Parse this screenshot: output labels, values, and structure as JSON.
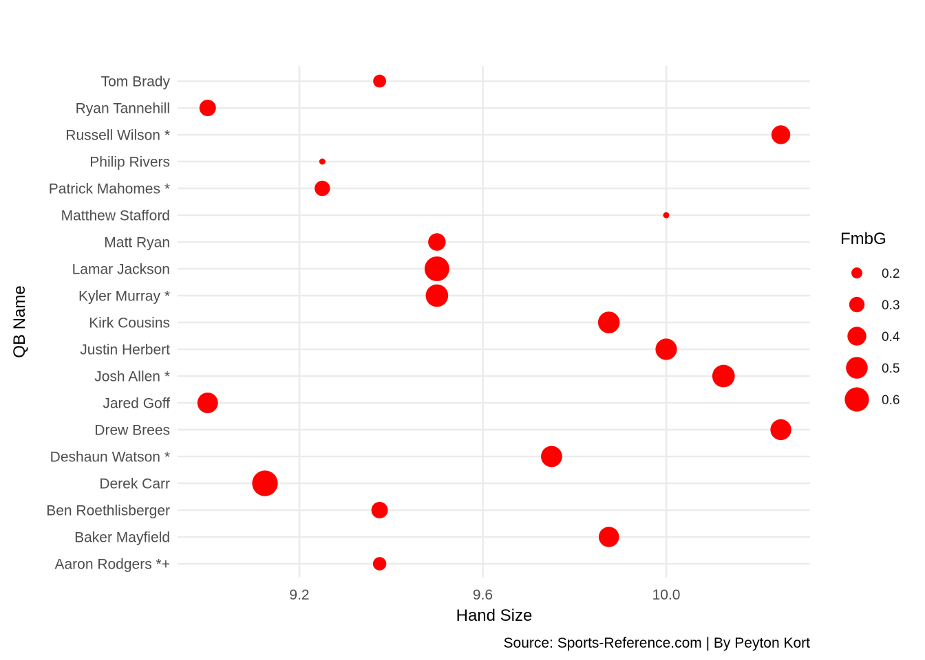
{
  "chart_data": {
    "type": "scatter",
    "title": "",
    "xlabel": "Hand Size",
    "ylabel": "QB Name",
    "caption": "Source: Sports-Reference.com | By Peyton Kort",
    "xlim": [
      8.875,
      10.25
    ],
    "x_ticks": [
      9.2,
      9.6,
      10.0
    ],
    "x_tick_labels": [
      "9.2",
      "9.6",
      "10.0"
    ],
    "grid": true,
    "colors": {
      "point": "#ff0000",
      "grid": "#ebebeb"
    },
    "size_legend": {
      "title": "FmbG",
      "position": "right",
      "breaks": [
        0.2,
        0.3,
        0.4,
        0.5,
        0.6
      ],
      "labels": [
        "0.2",
        "0.3",
        "0.4",
        "0.5",
        "0.6"
      ]
    },
    "size_range": [
      0.13,
      0.68
    ],
    "categories": [
      "Aaron Rodgers *+",
      "Baker Mayfield",
      "Ben Roethlisberger",
      "Derek Carr",
      "Deshaun Watson *",
      "Drew Brees",
      "Jared Goff",
      "Josh Allen *",
      "Justin Herbert",
      "Kirk Cousins",
      "Kyler Murray *",
      "Lamar Jackson",
      "Matt Ryan",
      "Matthew Stafford",
      "Patrick Mahomes *",
      "Philip Rivers",
      "Russell Wilson *",
      "Ryan Tannehill",
      "Tom Brady"
    ],
    "points": [
      {
        "name": "Aaron Rodgers *+",
        "x": 9.375,
        "fmbg": 0.25
      },
      {
        "name": "Baker Mayfield",
        "x": 9.875,
        "fmbg": 0.45
      },
      {
        "name": "Ben Roethlisberger",
        "x": 9.375,
        "fmbg": 0.33
      },
      {
        "name": "Derek Carr",
        "x": 9.125,
        "fmbg": 0.66
      },
      {
        "name": "Deshaun Watson *",
        "x": 9.75,
        "fmbg": 0.48
      },
      {
        "name": "Drew Brees",
        "x": 10.25,
        "fmbg": 0.47
      },
      {
        "name": "Jared Goff",
        "x": 9.0,
        "fmbg": 0.46
      },
      {
        "name": "Josh Allen *",
        "x": 10.125,
        "fmbg": 0.53
      },
      {
        "name": "Justin Herbert",
        "x": 10.0,
        "fmbg": 0.49
      },
      {
        "name": "Kirk Cousins",
        "x": 9.875,
        "fmbg": 0.5
      },
      {
        "name": "Kyler Murray *",
        "x": 9.5,
        "fmbg": 0.53
      },
      {
        "name": "Lamar Jackson",
        "x": 9.5,
        "fmbg": 0.62
      },
      {
        "name": "Matt Ryan",
        "x": 9.5,
        "fmbg": 0.36
      },
      {
        "name": "Matthew Stafford",
        "x": 10.0,
        "fmbg": 0.13
      },
      {
        "name": "Patrick Mahomes *",
        "x": 9.25,
        "fmbg": 0.3
      },
      {
        "name": "Philip Rivers",
        "x": 9.25,
        "fmbg": 0.13
      },
      {
        "name": "Russell Wilson *",
        "x": 10.25,
        "fmbg": 0.4
      },
      {
        "name": "Ryan Tannehill",
        "x": 9.0,
        "fmbg": 0.33
      },
      {
        "name": "Tom Brady",
        "x": 9.375,
        "fmbg": 0.24
      }
    ]
  }
}
